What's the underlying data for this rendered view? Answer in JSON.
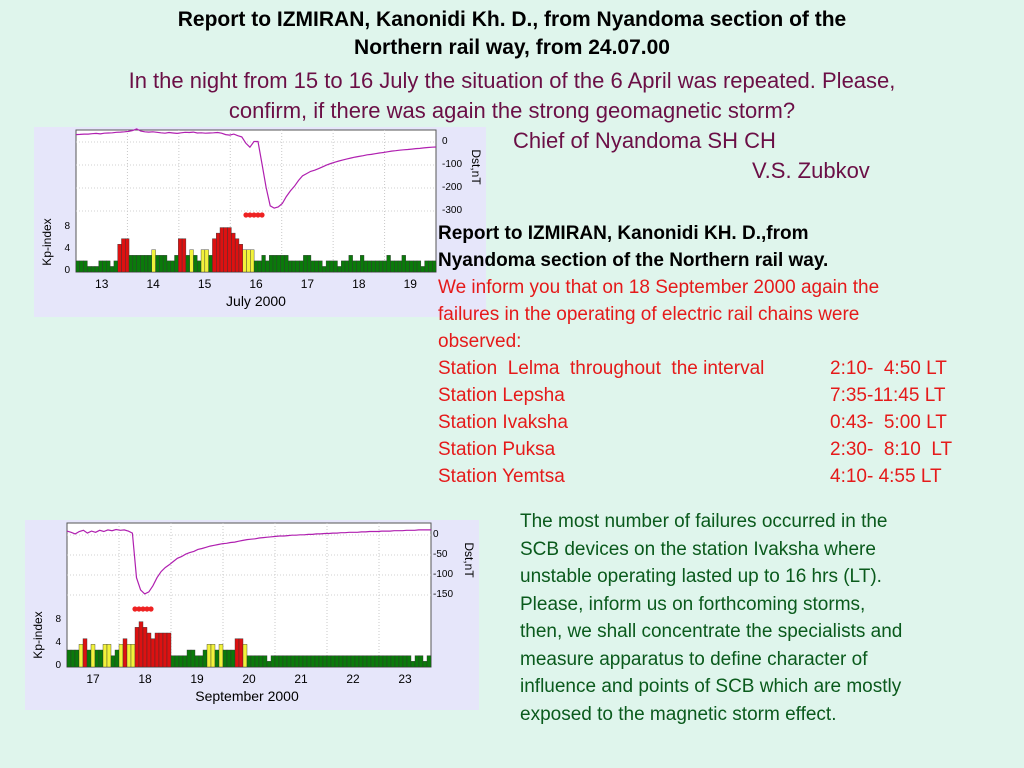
{
  "header": {
    "line1": "Report  to IZMIRAN, Kanonidi Kh. D., from Nyandoma section of  the",
    "line2": "Northern rail way, from 24.07.00",
    "message_line1": "In the night from 15 to 16 July the situation of the 6 April was repeated. Please,",
    "message_line2": "confirm, if there was again the strong geomagnetic storm?",
    "signature_title": "Chief of Nyandoma SH CH",
    "signature_name": "V.S. Zubkov"
  },
  "report2": {
    "head_line1": "Report to IZMIRAN, Kanonidi KH. D.,from",
    "head_line2": "Nyandoma section of the Northern rail way.",
    "intro_line1": "We inform you that on 18 September 2000 again the",
    "intro_line2": "failures in the operating of electric rail chains were",
    "intro_line3": "observed:",
    "stations": [
      {
        "name": "Station  Lelma  throughout  the interval",
        "time": "2:10-  4:50 LT"
      },
      {
        "name": "Station Lepsha",
        "time": "7:35-11:45 LT"
      },
      {
        "name": "Station Ivaksha",
        "time": "0:43-  5:00 LT"
      },
      {
        "name": "Station Puksa",
        "time": "2:30-  8:10  LT"
      },
      {
        "name": "Station Yemtsa",
        "time": "4:10- 4:55 LT"
      }
    ]
  },
  "paragraph": {
    "lines": [
      "The most number of failures occurred in the",
      "SCB devices on the station Ivaksha where",
      "unstable operating lasted up to 16 hrs (LT).",
      "Please, inform us on forthcoming storms,",
      "then, we shall concentrate the specialists and",
      "measure apparatus to define character of",
      "influence and points of SCB which are mostly",
      "exposed to the magnetic storm effect."
    ]
  },
  "colors": {
    "background": "#dff5ec",
    "title_text": "#000000",
    "message_text": "#6b0f46",
    "report_red": "#e51a1a",
    "paragraph_green": "#0a5a1c",
    "kp_green": "#0a7a0a",
    "kp_yellow": "#f2f23a",
    "kp_red": "#dd1111",
    "dst_line": "#b020b0",
    "storm_marker": "#ee2222"
  },
  "chart_data": [
    {
      "type": "bar",
      "xlabel": "July 2000",
      "x_tick_labels": [
        "13",
        "14",
        "15",
        "16",
        "17",
        "18",
        "19"
      ],
      "kp_axis_label": "Kp-index",
      "kp_ticks": [
        "0",
        "4",
        "8"
      ],
      "kp_ylim": [
        0,
        9
      ],
      "dst_axis_label": "Dst,nT",
      "dst_ticks": [
        "0",
        "-100",
        "-200",
        "-300"
      ],
      "dst_ylim": [
        -330,
        40
      ],
      "kp_series": [
        2,
        2,
        2,
        1,
        1,
        1,
        2,
        2,
        2,
        1,
        2,
        5,
        6,
        6,
        3,
        3,
        3,
        3,
        3,
        3,
        4,
        3,
        3,
        3,
        2,
        2,
        3,
        6,
        6,
        3,
        4,
        3,
        2,
        4,
        4,
        3,
        6,
        7,
        8,
        8,
        8,
        7,
        6,
        5,
        4,
        4,
        4,
        2,
        2,
        3,
        2,
        3,
        3,
        3,
        3,
        3,
        2,
        2,
        2,
        2,
        3,
        3,
        2,
        2,
        2,
        1,
        2,
        2,
        2,
        1,
        2,
        2,
        3,
        2,
        2,
        3,
        2,
        2,
        2,
        2,
        2,
        2,
        3,
        2,
        2,
        2,
        3,
        2,
        2,
        2,
        2,
        1,
        2,
        2,
        2
      ],
      "dst_series": [
        20,
        21,
        22,
        22,
        24,
        25,
        23,
        26,
        27,
        28,
        30,
        31,
        32,
        34,
        38,
        45,
        35,
        32,
        31,
        32,
        30,
        28,
        26,
        29,
        27,
        25,
        28,
        30,
        29,
        31,
        27,
        28,
        26,
        27,
        28,
        29,
        26,
        20,
        18,
        22,
        15,
        10,
        -18,
        -35,
        -10,
        -10,
        -110,
        -210,
        -290,
        -300,
        -295,
        -280,
        -250,
        -225,
        -205,
        -180,
        -160,
        -150,
        -140,
        -135,
        -128,
        -120,
        -112,
        -106,
        -100,
        -95,
        -90,
        -86,
        -82,
        -78,
        -75,
        -72,
        -68,
        -66,
        -63,
        -60,
        -58,
        -55,
        -52,
        -50,
        -48,
        -46,
        -45,
        -43,
        -41,
        -40,
        -38,
        -36,
        -35,
        -34
      ],
      "storm_marker_day": "16"
    },
    {
      "type": "bar",
      "xlabel": "September 2000",
      "x_tick_labels": [
        "17",
        "18",
        "19",
        "20",
        "21",
        "22",
        "23"
      ],
      "kp_axis_label": "Kp-index",
      "kp_ticks": [
        "0",
        "4",
        "8"
      ],
      "kp_ylim": [
        0,
        9
      ],
      "dst_axis_label": "Dst,nT",
      "dst_ticks": [
        "0",
        "-50",
        "-100",
        "-150"
      ],
      "dst_ylim": [
        -170,
        15
      ],
      "kp_series": [
        3,
        3,
        3,
        4,
        5,
        3,
        4,
        3,
        3,
        4,
        4,
        2,
        3,
        4,
        5,
        4,
        4,
        7,
        8,
        7,
        6,
        5,
        6,
        6,
        6,
        6,
        2,
        2,
        2,
        2,
        3,
        3,
        2,
        2,
        3,
        4,
        4,
        3,
        4,
        3,
        3,
        3,
        5,
        5,
        4,
        2,
        2,
        2,
        2,
        2,
        1,
        2,
        2,
        2,
        2,
        2,
        2,
        2,
        2,
        2,
        2,
        2,
        2,
        2,
        2,
        2,
        2,
        2,
        2,
        2,
        2,
        2,
        2,
        2,
        2,
        2,
        2,
        2,
        2,
        2,
        2,
        2,
        2,
        2,
        2,
        2,
        1,
        2,
        2,
        1,
        2
      ],
      "dst_series": [
        -5,
        -8,
        -12,
        -6,
        -3,
        -10,
        -5,
        -8,
        -3,
        -6,
        -2,
        -4,
        -1,
        -3,
        -2,
        -5,
        -10,
        -120,
        -150,
        -160,
        -155,
        -140,
        -120,
        -105,
        -95,
        -88,
        -80,
        -72,
        -68,
        -62,
        -58,
        -55,
        -50,
        -48,
        -45,
        -42,
        -40,
        -38,
        -36,
        -35,
        -33,
        -32,
        -30,
        -28,
        -26,
        -25,
        -24,
        -22,
        -21,
        -20,
        -19,
        -18,
        -17,
        -17,
        -16,
        -15,
        -15,
        -14,
        -14,
        -13,
        -13,
        -12,
        -12,
        -11,
        -11,
        -10,
        -10,
        -9,
        -9,
        -8,
        -8,
        -8,
        -7,
        -7,
        -6,
        -6,
        -6,
        -5,
        -5,
        -5,
        -4,
        -4,
        -4,
        -3,
        -3,
        -3,
        -2,
        -2,
        -2,
        -2
      ],
      "storm_marker_day": "18"
    }
  ]
}
